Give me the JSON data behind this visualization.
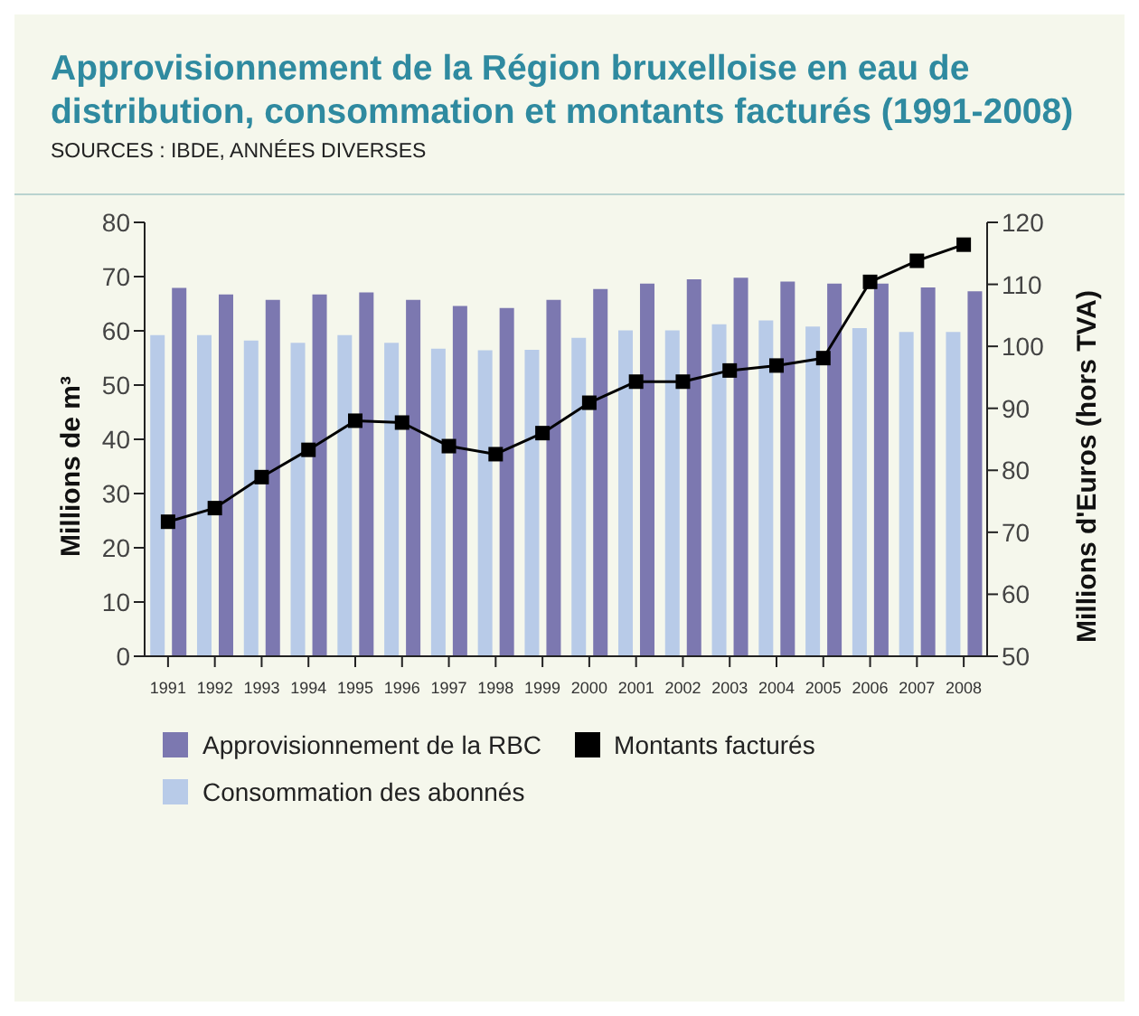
{
  "chart_data": {
    "type": "bar",
    "title": "Approvisionnement de la Région bruxelloise en eau de distribution, consommation et montants facturés (1991-2008)",
    "subtitle": "SOURCES : IBDE, ANNÉES DIVERSES",
    "ylabel": "Millions de m³",
    "y2label": "Millions d'Euros (hors TVA)",
    "categories": [
      "1991",
      "1992",
      "1993",
      "1994",
      "1995",
      "1996",
      "1997",
      "1998",
      "1999",
      "2000",
      "2001",
      "2002",
      "2003",
      "2004",
      "2005",
      "2006",
      "2007",
      "2008"
    ],
    "series": [
      {
        "name": "Approvisionnement de la RBC",
        "color": "#7c78b0",
        "values": [
          67.9,
          66.7,
          65.7,
          66.7,
          67.1,
          65.7,
          64.6,
          64.2,
          65.7,
          67.7,
          68.7,
          69.5,
          69.8,
          69.1,
          68.7,
          68.7,
          68.0,
          67.3
        ]
      },
      {
        "name": "Consommation des abonnés",
        "color": "#b8cbe8",
        "values": [
          59.2,
          59.2,
          58.2,
          57.8,
          59.2,
          57.8,
          56.7,
          56.4,
          56.5,
          58.7,
          60.1,
          60.1,
          61.2,
          61.9,
          60.8,
          60.5,
          59.8,
          59.8
        ]
      },
      {
        "name": "Montants facturés",
        "type": "line",
        "axis": "y2",
        "color": "#000000",
        "values": [
          71.7,
          73.9,
          78.9,
          83.3,
          88.0,
          87.7,
          83.9,
          82.6,
          86.0,
          90.9,
          94.3,
          94.3,
          96.1,
          96.9,
          98.1,
          110.4,
          113.8,
          116.4
        ]
      }
    ],
    "ylim": [
      0,
      80
    ],
    "yticks": [
      0,
      10,
      20,
      30,
      40,
      50,
      60,
      70,
      80
    ],
    "y2lim": [
      50,
      120
    ],
    "y2ticks": [
      50,
      60,
      70,
      80,
      90,
      100,
      110,
      120
    ],
    "marker": "square",
    "line_style": "solid",
    "grid": false,
    "legend": "bottom"
  }
}
